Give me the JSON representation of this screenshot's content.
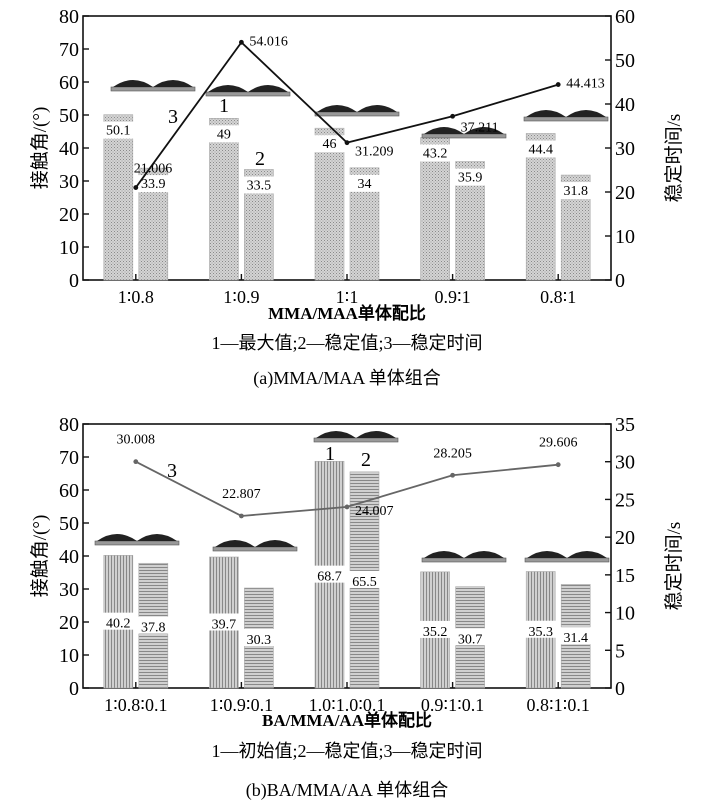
{
  "chart_data": [
    {
      "type": "bar",
      "panel": "a",
      "categories": [
        "1∶0.8",
        "1∶0.9",
        "1∶1",
        "0.9∶1",
        "0.8∶1"
      ],
      "series": [
        {
          "name": "1",
          "label": "最大值",
          "axis": "left",
          "values": [
            50.1,
            49,
            46,
            43.2,
            44.4
          ],
          "labels": [
            "50.1",
            "49",
            "46",
            "43.2",
            "44.4"
          ]
        },
        {
          "name": "2",
          "label": "稳定值",
          "axis": "left",
          "values": [
            33.9,
            33.5,
            34,
            35.9,
            31.8
          ],
          "labels": [
            "33.9",
            "33.5",
            "34",
            "35.9",
            "31.8"
          ]
        },
        {
          "name": "3",
          "label": "稳定时间",
          "axis": "right",
          "type": "line",
          "values": [
            21.006,
            54.016,
            31.209,
            37.211,
            44.413
          ],
          "labels": [
            "21.006",
            "54.016",
            "31.209",
            "37.211",
            "44.413"
          ]
        }
      ],
      "xlabel": "MMA/MAA单体配比",
      "ylabel": "接触角/(°)",
      "y2label": "稳定时间/s",
      "ylim": [
        0,
        80
      ],
      "yticks": [
        "0",
        "10",
        "20",
        "30",
        "40",
        "50",
        "60",
        "70",
        "80"
      ],
      "y2lim": [
        0,
        60
      ],
      "y2ticks": [
        "0",
        "10",
        "20",
        "30",
        "40",
        "50",
        "60"
      ],
      "legend": "1—最大值;2—稳定值;3—稳定时间",
      "caption": "(a)MMA/MAA 单体组合"
    },
    {
      "type": "bar",
      "panel": "b",
      "categories": [
        "1∶0.8∶0.1",
        "1∶0.9∶0.1",
        "1.0∶1.0∶0.1",
        "0.9∶1∶0.1",
        "0.8∶1∶0.1"
      ],
      "series": [
        {
          "name": "1",
          "label": "初始值",
          "axis": "left",
          "values": [
            40.2,
            39.7,
            68.7,
            35.2,
            35.3
          ],
          "labels": [
            "40.2",
            "39.7",
            "68.7",
            "35.2",
            "35.3"
          ]
        },
        {
          "name": "2",
          "label": "稳定值",
          "axis": "left",
          "values": [
            37.8,
            30.3,
            65.5,
            30.7,
            31.4
          ],
          "labels": [
            "37.8",
            "30.3",
            "65.5",
            "30.7",
            "31.4"
          ]
        },
        {
          "name": "3",
          "label": "稳定时间",
          "axis": "right",
          "type": "line",
          "values": [
            30.008,
            22.807,
            24.007,
            28.205,
            29.606
          ],
          "labels": [
            "30.008",
            "22.807",
            "24.007",
            "28.205",
            "29.606"
          ]
        }
      ],
      "xlabel": "BA/MMA/AA单体配比",
      "ylabel": "接触角/(°)",
      "y2label": "稳定时间/s",
      "ylim": [
        0,
        80
      ],
      "yticks": [
        "0",
        "10",
        "20",
        "30",
        "40",
        "50",
        "60",
        "70",
        "80"
      ],
      "y2lim": [
        0,
        35
      ],
      "y2ticks": [
        "0",
        "5",
        "10",
        "15",
        "20",
        "25",
        "30",
        "35"
      ],
      "legend": "1—初始值;2—稳定值;3—稳定时间",
      "caption": "(b)BA/MMA/AA 单体组合"
    }
  ]
}
